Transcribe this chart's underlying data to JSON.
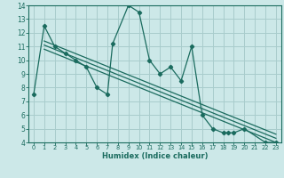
{
  "title": "",
  "xlabel": "Humidex (Indice chaleur)",
  "xlim": [
    -0.5,
    23.5
  ],
  "ylim": [
    4,
    14
  ],
  "xticks": [
    0,
    1,
    2,
    3,
    4,
    5,
    6,
    7,
    8,
    9,
    10,
    11,
    12,
    13,
    14,
    15,
    16,
    17,
    18,
    19,
    20,
    21,
    22,
    23
  ],
  "yticks": [
    4,
    5,
    6,
    7,
    8,
    9,
    10,
    11,
    12,
    13,
    14
  ],
  "bg_color": "#cce8e8",
  "grid_color": "#a8cccc",
  "line_color": "#1a6b5e",
  "main_line_x": [
    0,
    1,
    2,
    3,
    4,
    5,
    6,
    7,
    7.5,
    9,
    10,
    11,
    12,
    13,
    14,
    15,
    16,
    17,
    18,
    18.5,
    19,
    20,
    22,
    23
  ],
  "main_line_y": [
    7.5,
    12.5,
    11.0,
    10.5,
    10.0,
    9.5,
    8.0,
    7.5,
    11.2,
    14.0,
    13.5,
    10.0,
    9.0,
    9.5,
    8.5,
    11.0,
    6.0,
    5.0,
    4.7,
    4.7,
    4.7,
    5.0,
    4.0,
    4.0
  ],
  "trend_lines": [
    {
      "x": [
        1,
        23
      ],
      "y": [
        10.8,
        4.0
      ]
    },
    {
      "x": [
        1,
        23
      ],
      "y": [
        11.1,
        4.3
      ]
    },
    {
      "x": [
        1,
        23
      ],
      "y": [
        11.4,
        4.6
      ]
    }
  ]
}
